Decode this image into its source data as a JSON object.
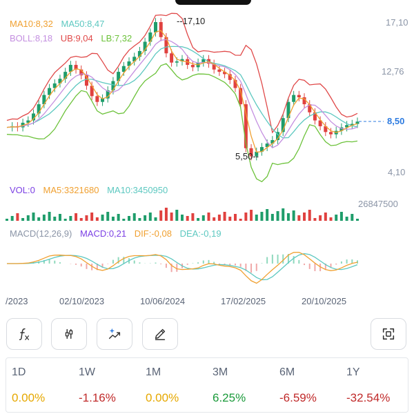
{
  "legend": {
    "ma10": "MA10:8,32",
    "ma50": "MA50:8,47",
    "boll": "BOLL:8,18",
    "ub": "UB:9,04",
    "lb": "LB:7,32"
  },
  "price_axis": {
    "high": "17,10",
    "mid": "12,76",
    "low": "4,10",
    "current": "8,50"
  },
  "annotations": {
    "max": "17,10",
    "min": "5,50"
  },
  "volume": {
    "vol": "VOL:0",
    "ma5": "MA5:3321680",
    "ma10": "MA10:3450950",
    "max_label": "26847500"
  },
  "macd": {
    "params": "MACD(12,26,9)",
    "macd": "MACD:0,21",
    "dif": "DIF:-0,08",
    "dea": "DEA:-0,19"
  },
  "dates": [
    "/2023",
    "02/10/2023",
    "10/06/2024",
    "17/02/2025",
    "20/10/2025"
  ],
  "toolbar": {
    "indicator_icon": "function-icon",
    "compare_icon": "adjust-icon",
    "ai_icon": "sparkle-chart-icon",
    "draw_icon": "pencil-icon",
    "fullscreen_icon": "fullscreen-icon"
  },
  "performance": [
    {
      "period": "1D",
      "value": "0.00%",
      "trend": "flat"
    },
    {
      "period": "1W",
      "value": "-1.16%",
      "trend": "down"
    },
    {
      "period": "1M",
      "value": "0.00%",
      "trend": "flat"
    },
    {
      "period": "3M",
      "value": "6.25%",
      "trend": "up"
    },
    {
      "period": "6M",
      "value": "-6.59%",
      "trend": "down"
    },
    {
      "period": "1Y",
      "value": "-32.54%",
      "trend": "down"
    }
  ],
  "colors": {
    "up": "#1f9d6b",
    "down": "#e0413f",
    "flat": "#e6a800",
    "ma10": "#f0a030",
    "ma50": "#5cc8c0",
    "boll": "#c48fe0",
    "ub": "#e04848",
    "lb": "#6cc23a",
    "current_price": "#2d7be0",
    "macd_label": "#7b3fe4",
    "vol_label": "#7b3fe4"
  },
  "price_series": [
    8.0,
    8.1,
    8.0,
    8.4,
    8.6,
    9.2,
    10.0,
    10.8,
    11.4,
    11.8,
    12.2,
    12.8,
    13.4,
    13.0,
    12.5,
    11.6,
    10.7,
    10.2,
    10.5,
    11.2,
    12.0,
    12.8,
    13.3,
    13.7,
    14.1,
    14.6,
    15.4,
    16.2,
    17.1,
    15.8,
    14.4,
    13.6,
    13.7,
    13.9,
    13.4,
    13.2,
    13.6,
    13.9,
    13.5,
    13.0,
    12.8,
    12.6,
    12.1,
    11.4,
    10.0,
    6.2,
    5.5,
    5.9,
    6.3,
    6.6,
    6.9,
    7.6,
    8.8,
    10.2,
    10.8,
    10.6,
    10.0,
    9.3,
    8.6,
    8.1,
    7.6,
    7.4,
    7.7,
    8.0,
    8.2,
    8.3,
    8.5
  ]
}
